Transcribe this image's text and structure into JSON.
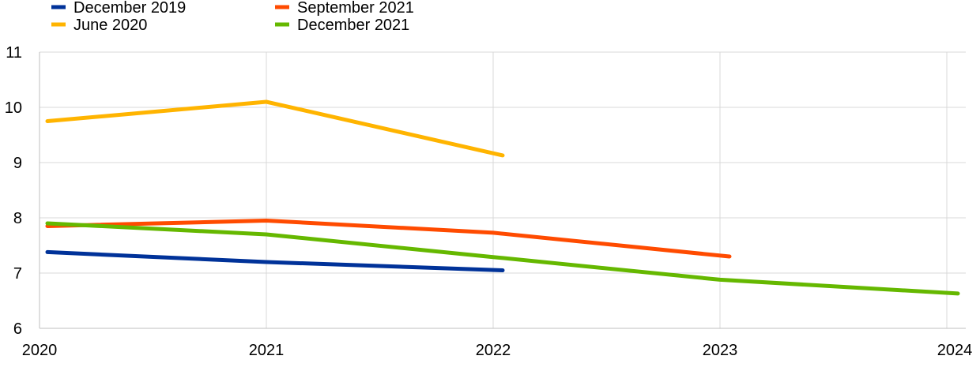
{
  "chart_data": {
    "type": "line",
    "title": "",
    "xlabel": "",
    "ylabel": "",
    "x": [
      2020,
      2021,
      2022,
      2023,
      2024
    ],
    "xlim": [
      2020,
      2024
    ],
    "ylim": [
      6,
      11
    ],
    "yticks": [
      6,
      7,
      8,
      9,
      10,
      11
    ],
    "xticks": [
      "2020",
      "2021",
      "2022",
      "2023",
      "2024"
    ],
    "grid": true,
    "legend_position": "top-left",
    "series": [
      {
        "name": "December 2019",
        "color": "#003299",
        "x": [
          2020,
          2021,
          2022
        ],
        "values": [
          7.38,
          7.2,
          7.05
        ]
      },
      {
        "name": "June 2020",
        "color": "#FFB400",
        "x": [
          2020,
          2021,
          2022
        ],
        "values": [
          9.75,
          10.1,
          9.13
        ]
      },
      {
        "name": "September 2021",
        "color": "#FF4B00",
        "x": [
          2020,
          2021,
          2022,
          2023
        ],
        "values": [
          7.85,
          7.95,
          7.73,
          7.3
        ]
      },
      {
        "name": "December 2021",
        "color": "#65B800",
        "x": [
          2020,
          2021,
          2022,
          2023,
          2024
        ],
        "values": [
          7.9,
          7.7,
          7.29,
          6.88,
          6.63
        ]
      }
    ]
  }
}
